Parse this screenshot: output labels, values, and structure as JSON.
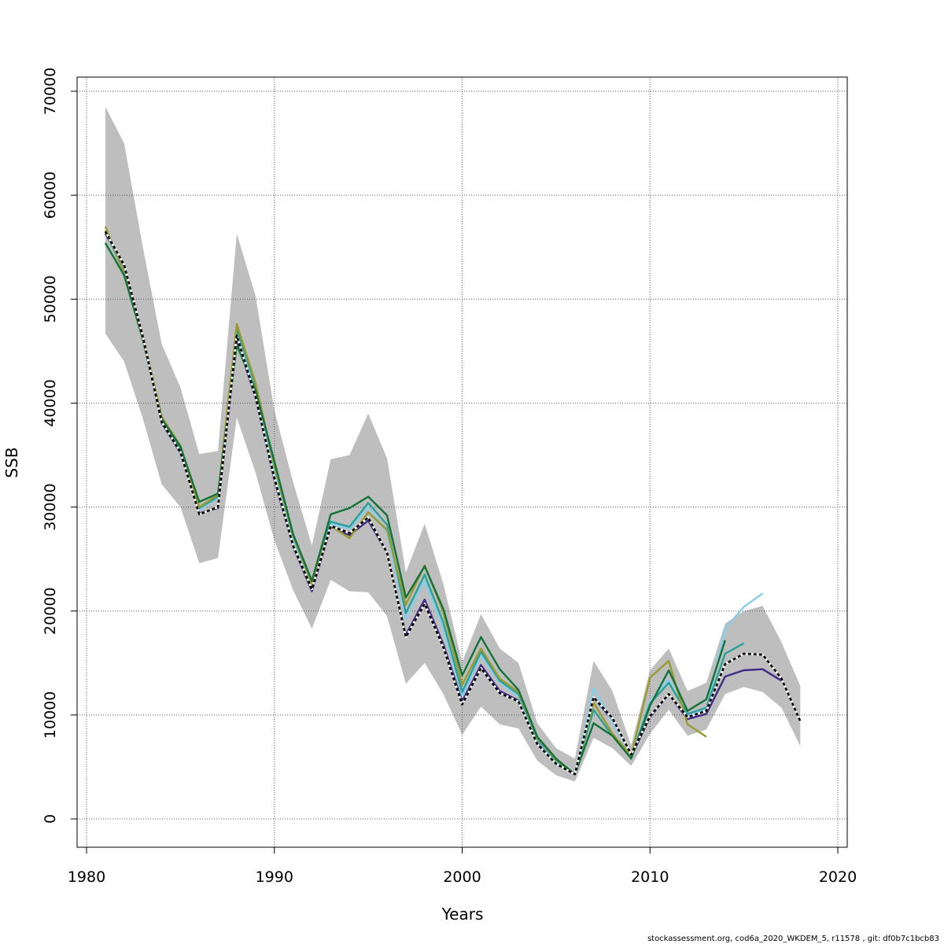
{
  "chart_data": {
    "type": "line",
    "xlabel": "Years",
    "ylabel": "SSB",
    "xlim": [
      1980,
      2020
    ],
    "ylim": [
      0,
      70000
    ],
    "x_ticks": [
      1980,
      1990,
      2000,
      2010,
      2020
    ],
    "y_ticks": [
      0,
      10000,
      20000,
      30000,
      40000,
      50000,
      60000,
      70000
    ],
    "grid": true,
    "footer": "stockassessment.org, cod6a_2020_WKDEM_5, r11578 , git: df0b7c1bcb83",
    "colors": {
      "band": "#bebebe",
      "grid": "#555555",
      "main_line": "#000000"
    },
    "confidence_band": {
      "x": [
        1981,
        1982,
        1983,
        1984,
        1985,
        1986,
        1987,
        1988,
        1989,
        1990,
        1991,
        1992,
        1993,
        1994,
        1995,
        1996,
        1997,
        1998,
        1999,
        2000,
        2001,
        2002,
        2003,
        2004,
        2005,
        2006,
        2007,
        2008,
        2009,
        2010,
        2011,
        2012,
        2013,
        2014,
        2015,
        2016,
        2017,
        2018
      ],
      "upper": [
        68500,
        65000,
        55000,
        45700,
        41500,
        35100,
        35400,
        56300,
        50300,
        39300,
        32400,
        26300,
        34600,
        35000,
        39000,
        34700,
        23700,
        28400,
        22600,
        15100,
        19700,
        16400,
        15000,
        9200,
        6800,
        5800,
        15200,
        12300,
        7100,
        14300,
        16400,
        12300,
        13100,
        18800,
        20000,
        20500,
        17000,
        12800
      ],
      "lower": [
        46700,
        44000,
        38500,
        32200,
        30000,
        24600,
        25100,
        38600,
        33300,
        26800,
        22000,
        18300,
        23000,
        21900,
        21800,
        19500,
        13000,
        15000,
        12000,
        8100,
        10800,
        9100,
        8700,
        5600,
        4200,
        3600,
        7800,
        6800,
        5100,
        8200,
        10500,
        8000,
        8600,
        12000,
        12700,
        12200,
        10700,
        7000
      ]
    },
    "series": [
      {
        "color": "#000000",
        "dashed": true,
        "x": [
          1981,
          1982,
          1983,
          1984,
          1985,
          1986,
          1987,
          1988,
          1989,
          1990,
          1991,
          1992,
          1993,
          1994,
          1995,
          1996,
          1997,
          1998,
          1999,
          2000,
          2001,
          2002,
          2003,
          2004,
          2005,
          2006,
          2007,
          2008,
          2009,
          2010,
          2011,
          2012,
          2013,
          2014,
          2015,
          2016,
          2017,
          2018
        ],
        "values": [
          56500,
          53300,
          46400,
          38200,
          35300,
          29300,
          30000,
          46500,
          40600,
          32800,
          26300,
          22100,
          28200,
          27500,
          29000,
          25600,
          17500,
          20700,
          16500,
          11000,
          14500,
          12100,
          11300,
          7200,
          5300,
          4300,
          11700,
          9700,
          6200,
          9900,
          12000,
          9800,
          10400,
          14900,
          15900,
          15800,
          13500,
          9400
        ]
      },
      {
        "color": "#3f2a86",
        "x": [
          1981,
          1982,
          1983,
          1984,
          1985,
          1986,
          1987,
          1988,
          1989,
          1990,
          1991,
          1992,
          1993,
          1994,
          1995,
          1996,
          1997,
          1998,
          1999,
          2000,
          2001,
          2002,
          2003,
          2004,
          2005,
          2006,
          2007,
          2008,
          2009,
          2010,
          2011,
          2012,
          2013,
          2014,
          2015,
          2016,
          2017
        ],
        "values": [
          56300,
          53200,
          46300,
          38100,
          35200,
          29400,
          29900,
          46100,
          40500,
          32600,
          26200,
          21900,
          28100,
          27300,
          28700,
          25600,
          17700,
          21100,
          16800,
          11300,
          14800,
          12300,
          11400,
          7300,
          5400,
          4300,
          11700,
          9500,
          6000,
          9800,
          12000,
          9600,
          10100,
          13700,
          14300,
          14400,
          13300
        ]
      },
      {
        "color": "#87ceeb",
        "x": [
          1981,
          1982,
          1983,
          1984,
          1985,
          1986,
          1987,
          1988,
          1989,
          1990,
          1991,
          1992,
          1993,
          1994,
          1995,
          1996,
          1997,
          1998,
          1999,
          2000,
          2001,
          2002,
          2003,
          2004,
          2005,
          2006,
          2007,
          2008,
          2009,
          2010,
          2011,
          2012,
          2013,
          2014,
          2015,
          2016
        ],
        "values": [
          56600,
          52500,
          46300,
          38300,
          35600,
          29700,
          30900,
          46900,
          41300,
          33700,
          27000,
          22500,
          28400,
          27900,
          30000,
          27600,
          19200,
          22900,
          18300,
          11800,
          15800,
          13100,
          11800,
          7600,
          5500,
          4300,
          12600,
          9300,
          6100,
          11300,
          13400,
          9900,
          10500,
          18300,
          20400,
          21700
        ]
      },
      {
        "color": "#2aa198",
        "x": [
          1981,
          1982,
          1983,
          1984,
          1985,
          1986,
          1987,
          1988,
          1989,
          1990,
          1991,
          1992,
          1993,
          1994,
          1995,
          1996,
          1997,
          1998,
          1999,
          2000,
          2001,
          2002,
          2003,
          2004,
          2005,
          2006,
          2007,
          2008,
          2009,
          2010,
          2011,
          2012,
          2013,
          2014,
          2015
        ],
        "values": [
          56600,
          52600,
          46400,
          38400,
          35600,
          29900,
          31000,
          47100,
          41700,
          33900,
          27200,
          22600,
          28600,
          28100,
          30400,
          28300,
          19800,
          23500,
          18900,
          12200,
          16100,
          13300,
          12000,
          7700,
          5600,
          4300,
          10500,
          8000,
          6000,
          11100,
          13100,
          10100,
          10700,
          15900,
          16900
        ]
      },
      {
        "color": "#9a9a2e",
        "x": [
          1981,
          1982,
          1983,
          1984,
          1985,
          1986,
          1987,
          1988,
          1989,
          1990,
          1991,
          1992,
          1993,
          1994,
          1995,
          1996,
          1997,
          1998,
          1999,
          2000,
          2001,
          2002,
          2003,
          2004,
          2005,
          2006,
          2007,
          2008,
          2009,
          2010,
          2011,
          2012,
          2013
        ],
        "values": [
          57000,
          52500,
          46500,
          38700,
          35900,
          30000,
          31200,
          47600,
          41900,
          34000,
          27300,
          22600,
          28200,
          27000,
          29500,
          27800,
          20600,
          24400,
          19900,
          12900,
          16400,
          13500,
          12200,
          7800,
          5700,
          4300,
          11200,
          8200,
          6100,
          13600,
          15200,
          9100,
          7900
        ]
      },
      {
        "color": "#127238",
        "x": [
          1981,
          1982,
          1983,
          1984,
          1985,
          1986,
          1987,
          1988,
          1989,
          1990,
          1991,
          1992,
          1993,
          1994,
          1995,
          1996,
          1997,
          1998,
          1999,
          2000,
          2001,
          2002,
          2003,
          2004,
          2005,
          2006,
          2007,
          2008,
          2009,
          2010,
          2011,
          2012,
          2013,
          2014
        ],
        "values": [
          55400,
          52300,
          46100,
          38500,
          35800,
          30500,
          31300,
          45600,
          41200,
          34400,
          27400,
          22900,
          29300,
          29900,
          31000,
          29200,
          21300,
          24300,
          20200,
          13800,
          17500,
          14400,
          12400,
          7900,
          5800,
          4300,
          9200,
          8000,
          5800,
          10900,
          14300,
          10400,
          11500,
          17200
        ]
      }
    ]
  }
}
